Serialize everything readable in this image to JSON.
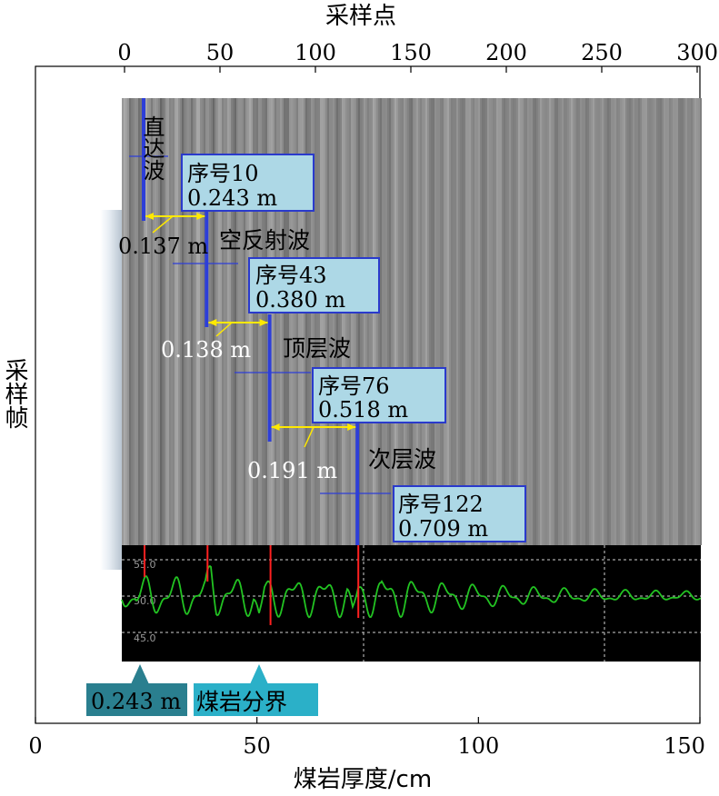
{
  "chart_data": {
    "type": "line",
    "top_axis": {
      "label": "采样点",
      "range": [
        0,
        300
      ],
      "ticks": [
        "0",
        "50",
        "100",
        "150",
        "200",
        "250",
        "300"
      ]
    },
    "bottom_axis": {
      "label": "煤岩厚度/cm",
      "range": [
        0,
        150
      ],
      "ticks": [
        "0",
        "50",
        "100",
        "150"
      ]
    },
    "left_axis": {
      "label": "采样帧"
    },
    "waves": [
      {
        "name": "直达波",
        "index": 10,
        "index_label": "序号10",
        "depth_label": "0.243 m"
      },
      {
        "name": "空反射波",
        "index": 43,
        "index_label": "序号43",
        "depth_label": "0.380 m"
      },
      {
        "name": "顶层波",
        "index": 76,
        "index_label": "序号76",
        "depth_label": "0.518 m"
      },
      {
        "name": "次层波",
        "index": 122,
        "index_label": "序号122",
        "depth_label": "0.709 m"
      }
    ],
    "intervals": [
      "0.137 m",
      "0.138 m",
      "0.191 m"
    ],
    "inset": {
      "ytick_labels": [
        "55.0",
        "50.0",
        "45.0"
      ]
    },
    "markers": [
      {
        "label": "0.243 m",
        "color": "#2a7f8f"
      },
      {
        "label": "煤岩分界",
        "color": "#2bb0c8"
      }
    ]
  }
}
